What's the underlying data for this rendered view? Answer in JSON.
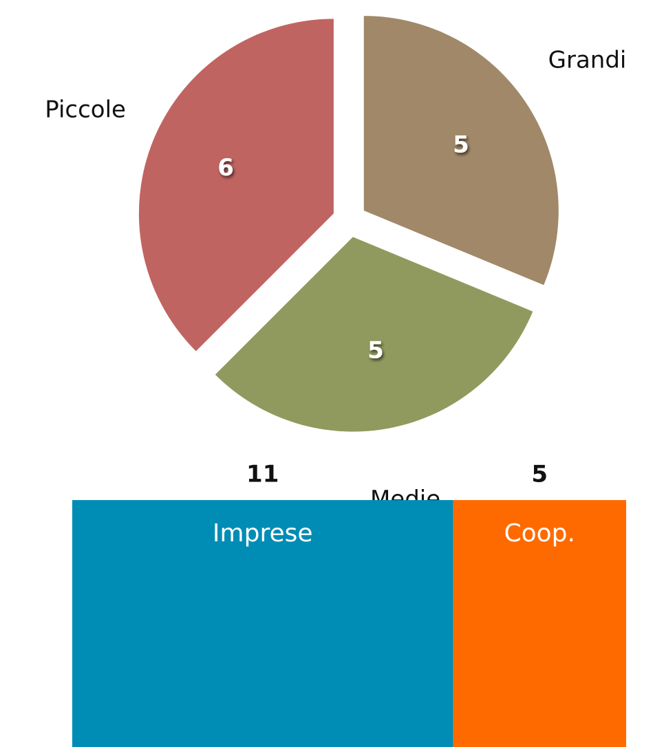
{
  "chart_data": [
    {
      "type": "pie",
      "categories": [
        "Grandi",
        "Medie",
        "Piccole"
      ],
      "values": [
        5,
        5,
        6
      ],
      "colors": [
        "#a08868",
        "#919a5e",
        "#c06462"
      ]
    },
    {
      "type": "stacked-bar",
      "series": [
        {
          "name": "Imprese",
          "color": "#008db5",
          "values": [
            11
          ]
        },
        {
          "name": "Coop.",
          "color": "#ff6a00",
          "values": [
            5
          ]
        }
      ]
    }
  ]
}
